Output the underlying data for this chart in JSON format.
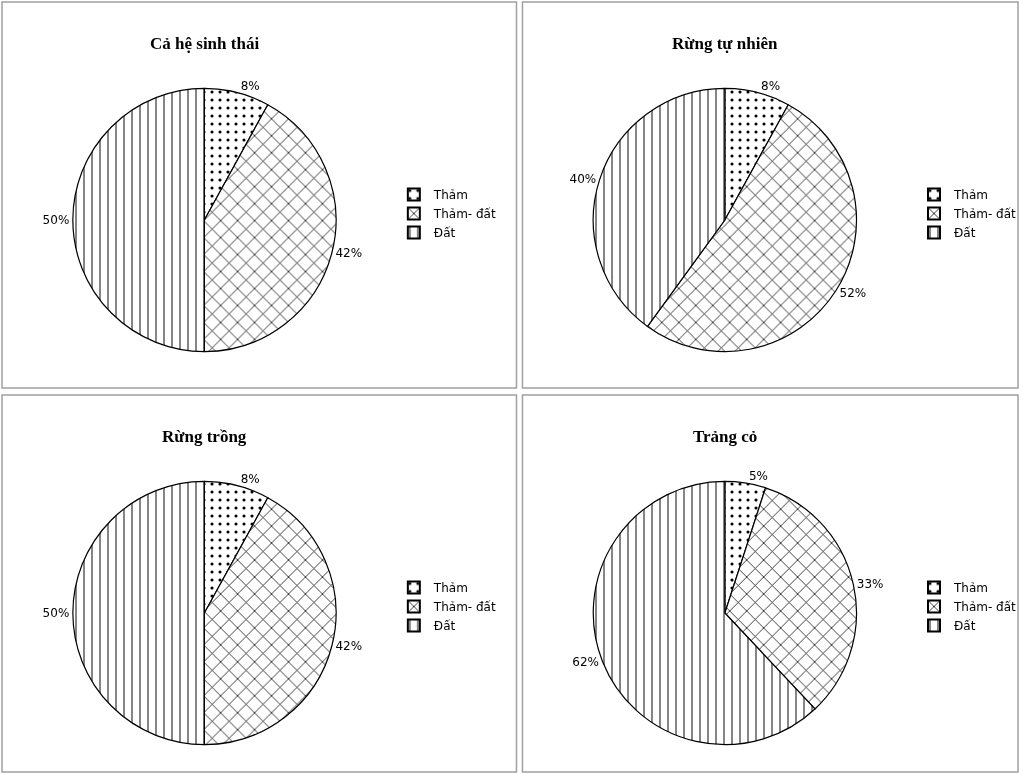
{
  "chart_data": [
    {
      "type": "pie",
      "title": "Cả hệ sinh thái",
      "categories": [
        "Thảm",
        "Thảm- đất",
        "Đất"
      ],
      "values": [
        8,
        42,
        50
      ],
      "value_labels": [
        "8%",
        "42%",
        "50%"
      ],
      "colors": [
        "#000000",
        "#000000",
        "#000000"
      ],
      "legend": "right"
    },
    {
      "type": "pie",
      "title": "Rừng tự nhiên",
      "categories": [
        "Thảm",
        "Thảm- đất",
        "Đất"
      ],
      "values": [
        8,
        52,
        40
      ],
      "value_labels": [
        "8%",
        "52%",
        "40%"
      ],
      "colors": [
        "#000000",
        "#000000",
        "#000000"
      ],
      "legend": "right"
    },
    {
      "type": "pie",
      "title": "Rừng trồng",
      "categories": [
        "Thảm",
        "Thảm- đất",
        "Đất"
      ],
      "values": [
        8,
        42,
        50
      ],
      "value_labels": [
        "8%",
        "42%",
        "50%"
      ],
      "colors": [
        "#000000",
        "#000000",
        "#000000"
      ],
      "legend": "right"
    },
    {
      "type": "pie",
      "title": "Trảng cỏ",
      "categories": [
        "Thảm",
        "Thảm- đất",
        "Đất"
      ],
      "values": [
        5,
        33,
        62
      ],
      "value_labels": [
        "5%",
        "33%",
        "62%"
      ],
      "colors": [
        "#000000",
        "#000000",
        "#000000"
      ],
      "legend": "right"
    }
  ]
}
